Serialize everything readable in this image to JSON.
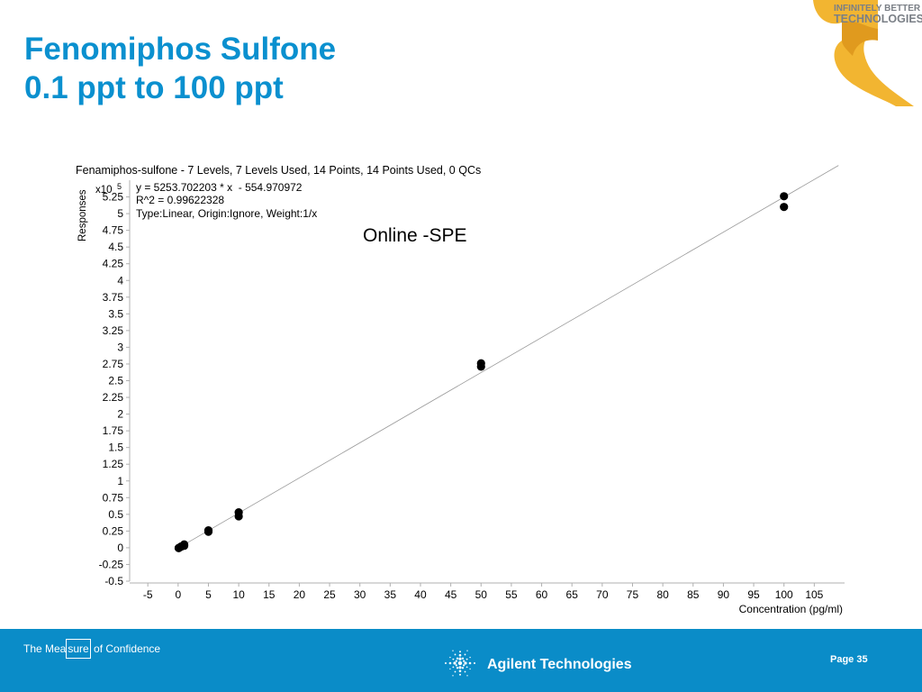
{
  "slide": {
    "title_line1": "Fenomiphos Sulfone",
    "title_line2": "0.1 ppt to 100 ppt",
    "brand_line1": "INFINITELY BETTER",
    "brand_line2": "TECHNOLOGIES"
  },
  "footer": {
    "tagline_pre": "The Mea",
    "tagline_boxed": "sure",
    "tagline_post": " of Confidence",
    "company": "Agilent Technologies",
    "page": "Page 35",
    "logo_icon": "agilent-spark-icon"
  },
  "chart_data": {
    "type": "scatter",
    "header": "Fenamiphos-sulfone - 7 Levels, 7 Levels Used, 14 Points, 14 Points Used, 0 QCs",
    "equation": "y = 5253.702203 * x  - 554.970972",
    "r_squared": "R^2 = 0.99622328",
    "fit_info": "Type:Linear, Origin:Ignore, Weight:1/x",
    "annotation": "Online -SPE",
    "xlabel": "Concentration (pg/ml)",
    "ylabel": "Responses",
    "y_multiplier": "x10",
    "y_exponent": "5",
    "xlim": [
      -8,
      110
    ],
    "ylim": [
      -0.5,
      5.5
    ],
    "x_ticks": [
      -5,
      0,
      5,
      10,
      15,
      20,
      25,
      30,
      35,
      40,
      45,
      50,
      55,
      60,
      65,
      70,
      75,
      80,
      85,
      90,
      95,
      100,
      105
    ],
    "y_ticks": [
      -0.5,
      -0.25,
      0,
      0.25,
      0.5,
      0.75,
      1,
      1.25,
      1.5,
      1.75,
      2,
      2.25,
      2.5,
      2.75,
      3,
      3.25,
      3.5,
      3.75,
      4,
      4.25,
      4.5,
      4.75,
      5,
      5.25
    ],
    "fit_line": {
      "slope": 5253.702203,
      "intercept": -554.970972,
      "scale": 100000
    },
    "series": [
      {
        "points": [
          {
            "x": 0.1,
            "y": -0.005
          },
          {
            "x": 0.1,
            "y": -0.003
          },
          {
            "x": 0.5,
            "y": 0.015
          },
          {
            "x": 0.5,
            "y": 0.02
          },
          {
            "x": 1,
            "y": 0.03
          },
          {
            "x": 1,
            "y": 0.05
          },
          {
            "x": 5,
            "y": 0.24
          },
          {
            "x": 5,
            "y": 0.26
          },
          {
            "x": 10,
            "y": 0.47
          },
          {
            "x": 10,
            "y": 0.53
          },
          {
            "x": 50,
            "y": 2.71
          },
          {
            "x": 50,
            "y": 2.76
          },
          {
            "x": 100,
            "y": 5.1
          },
          {
            "x": 100,
            "y": 5.26
          }
        ]
      }
    ],
    "colors": {
      "points": "#000000",
      "fit_line": "#9a9a9a",
      "axis": "#b0b0b0",
      "text": "#000000"
    }
  }
}
